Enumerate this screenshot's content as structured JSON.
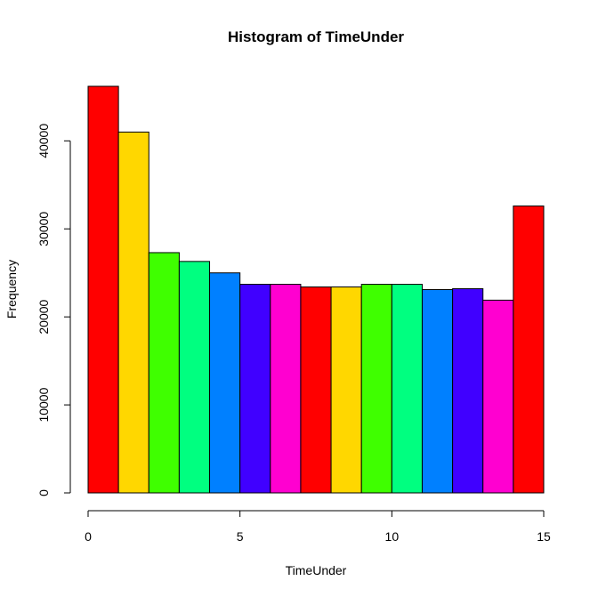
{
  "chart_data": {
    "type": "bar",
    "title": "Histogram of TimeUnder",
    "xlabel": "TimeUnder",
    "ylabel": "Frequency",
    "bin_edges": [
      0,
      1,
      2,
      3,
      4,
      5,
      6,
      7,
      8,
      9,
      10,
      11,
      12,
      13,
      14,
      15
    ],
    "values": [
      46200,
      41000,
      27300,
      26300,
      25000,
      23700,
      23700,
      23400,
      23400,
      23700,
      23700,
      23100,
      23200,
      21900,
      32600
    ],
    "colors": [
      "#FF0000",
      "#FFD700",
      "#3FFF00",
      "#00FF80",
      "#0080FF",
      "#4000FF",
      "#FF00D0",
      "#FF0000",
      "#FFD700",
      "#3FFF00",
      "#00FF80",
      "#0080FF",
      "#4000FF",
      "#FF00D0",
      "#FF0000"
    ],
    "xlim": [
      0,
      15
    ],
    "ylim": [
      0,
      46200
    ],
    "x_ticks": [
      0,
      5,
      10,
      15
    ],
    "x_tick_labels": [
      "0",
      "5",
      "10",
      "15"
    ],
    "y_ticks": [
      0,
      10000,
      20000,
      30000,
      40000
    ],
    "y_tick_labels": [
      "0",
      "10000",
      "20000",
      "30000",
      "40000"
    ],
    "grid": false,
    "legend": "none"
  }
}
